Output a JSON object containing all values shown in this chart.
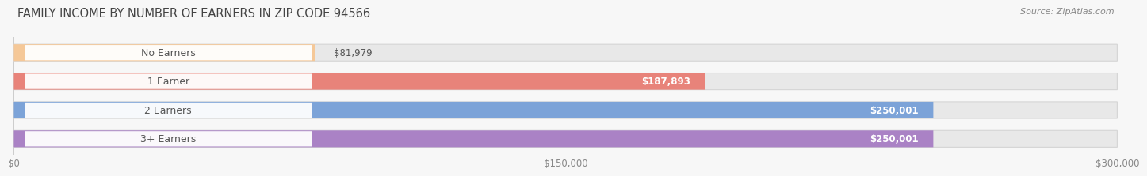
{
  "title": "FAMILY INCOME BY NUMBER OF EARNERS IN ZIP CODE 94566",
  "source": "Source: ZipAtlas.com",
  "categories": [
    "No Earners",
    "1 Earner",
    "2 Earners",
    "3+ Earners"
  ],
  "values": [
    81979,
    187893,
    250001,
    250001
  ],
  "bar_colors": [
    "#f5c898",
    "#e8837a",
    "#7ca3d8",
    "#aa82c5"
  ],
  "value_inside": [
    false,
    true,
    true,
    true
  ],
  "value_labels": [
    "$81,979",
    "$187,893",
    "$250,001",
    "$250,001"
  ],
  "xlim": [
    0,
    300000
  ],
  "xtick_values": [
    0,
    150000,
    300000
  ],
  "xtick_labels": [
    "$0",
    "$150,000",
    "$300,000"
  ],
  "background_color": "#f7f7f7",
  "track_color": "#e8e8e8",
  "track_edge_color": "#d5d5d5",
  "title_fontsize": 10.5,
  "source_fontsize": 8,
  "label_fontsize": 9,
  "value_fontsize": 8.5
}
